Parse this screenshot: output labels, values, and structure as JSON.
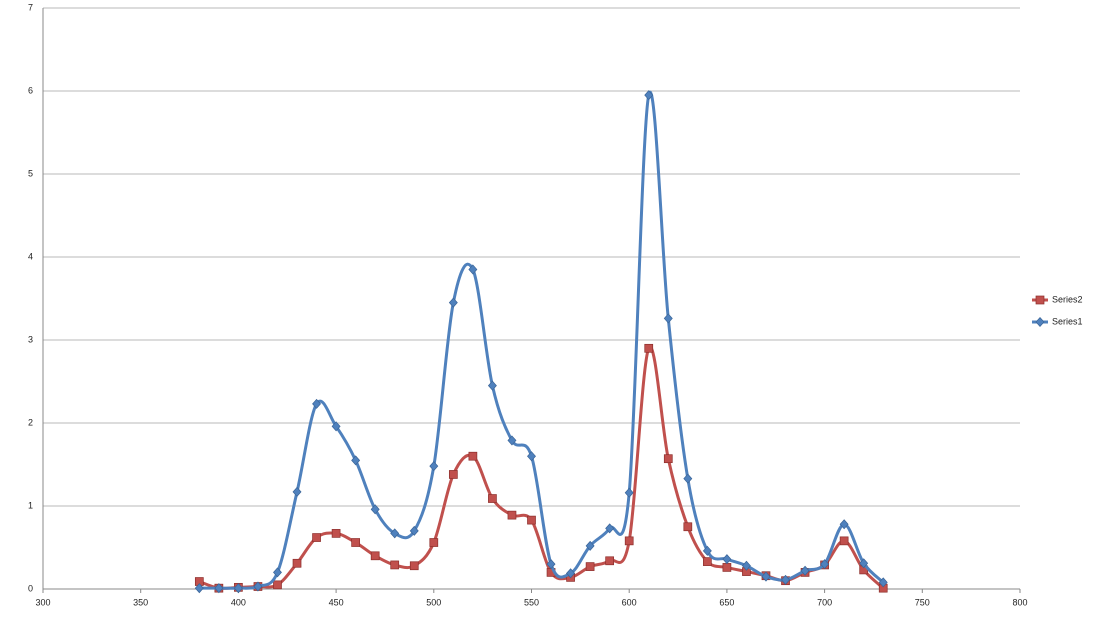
{
  "chart_data": {
    "type": "line",
    "smooth": true,
    "grid": true,
    "legend_position": "right",
    "x": [
      380,
      390,
      400,
      410,
      420,
      430,
      440,
      450,
      460,
      470,
      480,
      490,
      500,
      510,
      520,
      530,
      540,
      550,
      560,
      570,
      580,
      590,
      600,
      610,
      620,
      630,
      640,
      650,
      660,
      670,
      680,
      690,
      700,
      710,
      720,
      730
    ],
    "series": [
      {
        "name": "Series1",
        "color": "#4f81bd",
        "marker": "diamond",
        "values": [
          0.01,
          0.01,
          0.01,
          0.03,
          0.2,
          1.17,
          2.23,
          1.96,
          1.55,
          0.96,
          0.67,
          0.7,
          1.48,
          3.45,
          3.85,
          2.45,
          1.79,
          1.6,
          0.3,
          0.19,
          0.52,
          0.73,
          1.16,
          5.95,
          3.26,
          1.33,
          0.46,
          0.36,
          0.28,
          0.15,
          0.11,
          0.22,
          0.3,
          0.78,
          0.31,
          0.08
        ]
      },
      {
        "name": "Series2",
        "color": "#c0504d",
        "marker": "square",
        "values": [
          0.09,
          0.01,
          0.02,
          0.03,
          0.05,
          0.31,
          0.62,
          0.67,
          0.56,
          0.4,
          0.29,
          0.28,
          0.56,
          1.38,
          1.6,
          1.09,
          0.89,
          0.83,
          0.2,
          0.14,
          0.27,
          0.34,
          0.58,
          2.9,
          1.57,
          0.75,
          0.33,
          0.26,
          0.21,
          0.16,
          0.1,
          0.2,
          0.29,
          0.58,
          0.23,
          0.01
        ]
      }
    ],
    "xlim": [
      300,
      800
    ],
    "xticks": [
      300,
      350,
      400,
      450,
      500,
      550,
      600,
      650,
      700,
      750,
      800
    ],
    "ylim": [
      0,
      7
    ],
    "yticks": [
      0,
      1,
      2,
      3,
      4,
      5,
      6,
      7
    ]
  }
}
